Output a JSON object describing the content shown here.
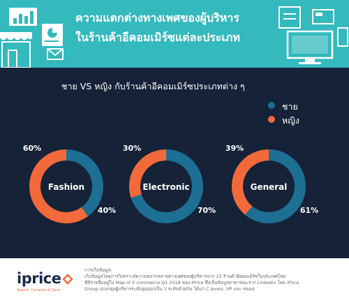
{
  "header": {
    "title_line1": "ความแตกต่างทางเพศของผู้บริหาร",
    "title_line2": "ในร้านค้าอีคอมเมิร์ซแต่ละประเภท"
  },
  "colors": {
    "header_bg": "#34b9bd",
    "main_bg": "#152238",
    "male": "#1d6f93",
    "female": "#f26a3b"
  },
  "chart_data": {
    "type": "donut",
    "title": "ชาย VS หญิง กับร้านค้าอีคอมเมิร์ซประเภทต่าง ๆ",
    "legend": [
      {
        "label": "ชาย",
        "color": "#1d6f93"
      },
      {
        "label": "หญิง",
        "color": "#f26a3b"
      }
    ],
    "legend_position": "top-right",
    "categories": [
      "Fashion",
      "Electronic",
      "General"
    ],
    "series": [
      {
        "name": "ชาย",
        "values": [
          40,
          70,
          61
        ]
      },
      {
        "name": "หญิง",
        "values": [
          60,
          30,
          39
        ]
      }
    ],
    "female_labels": [
      "60%",
      "30%",
      "39%"
    ],
    "male_labels": [
      "40%",
      "70%",
      "61%"
    ]
  },
  "footer": {
    "logo_text": "iprice",
    "logo_tagline": "Search, Compare & Save",
    "source_lines": [
      "การเก็บข้อมูล:",
      "เก็บข้อมูลโดยการวิเคราะห์ความหลากหลายทางเพศของผู้บริหารจาก 15 ร้านค้าอีคอมเมิร์ซในประเทศไทย",
      "ที่มีรายชื่ออยู่ใน Map of E-commerce Q1 2018 ของ iPrice ซึ่งเป็นข้อมูลสาธารณะจาก Linkedin โดย iPrice",
      "Group แบ่งกลุ่มผู้บริหารระดับสูงออกเป็น 3 ระดับด้วยกัน ได้แก่ C-levels, VP และ Head"
    ]
  }
}
